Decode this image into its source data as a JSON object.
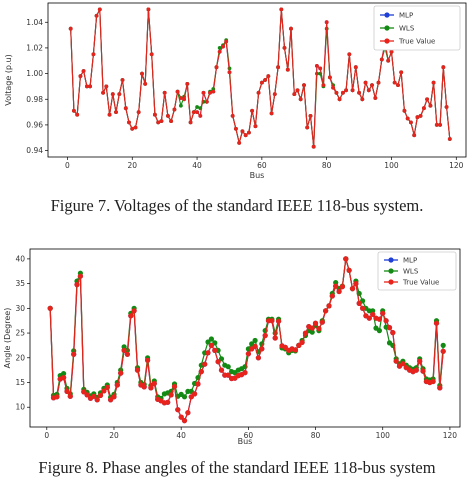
{
  "figures": [
    {
      "caption": "Figure 7. Voltages of the standard IEEE 118-bus system."
    },
    {
      "caption": "Figure 8. Phase angles of the standard IEEE 118-bus system"
    }
  ],
  "chart_data": [
    {
      "type": "line",
      "title": "",
      "xlabel": "Bus",
      "ylabel": "Voltage (p.u)",
      "xlim": [
        -6,
        123
      ],
      "ylim": [
        0.935,
        1.055
      ],
      "xticks": [
        0,
        20,
        40,
        60,
        80,
        100,
        120
      ],
      "yticks": [
        0.94,
        0.96,
        0.98,
        1.0,
        1.02,
        1.04
      ],
      "ytick_labels": [
        "0.94",
        "0.96",
        "0.98",
        "1.00",
        "1.02",
        "1.04"
      ],
      "legend": "top-right",
      "x": [
        1,
        2,
        3,
        4,
        5,
        6,
        7,
        8,
        9,
        10,
        11,
        12,
        13,
        14,
        15,
        16,
        17,
        18,
        19,
        20,
        21,
        22,
        23,
        24,
        25,
        26,
        27,
        28,
        29,
        30,
        31,
        32,
        33,
        34,
        35,
        36,
        37,
        38,
        39,
        40,
        41,
        42,
        43,
        44,
        45,
        46,
        47,
        48,
        49,
        50,
        51,
        52,
        53,
        54,
        55,
        56,
        57,
        58,
        59,
        60,
        61,
        62,
        63,
        64,
        65,
        66,
        67,
        68,
        69,
        70,
        71,
        72,
        73,
        74,
        75,
        76,
        77,
        78,
        79,
        80,
        81,
        82,
        83,
        84,
        85,
        86,
        87,
        88,
        89,
        90,
        91,
        92,
        93,
        94,
        95,
        96,
        97,
        98,
        99,
        100,
        101,
        102,
        103,
        104,
        105,
        106,
        107,
        108,
        109,
        110,
        111,
        112,
        113,
        114,
        115,
        116,
        117,
        118
      ],
      "series": [
        {
          "name": "MLP",
          "color": "#1f3fd6",
          "values": [
            1.035,
            0.971,
            0.968,
            0.998,
            1.002,
            0.99,
            0.99,
            1.015,
            1.045,
            1.05,
            0.985,
            0.99,
            0.968,
            0.984,
            0.97,
            0.984,
            0.995,
            0.973,
            0.962,
            0.957,
            0.958,
            0.97,
            1.0,
            0.992,
            1.05,
            1.015,
            0.968,
            0.962,
            0.963,
            0.985,
            0.967,
            0.963,
            0.972,
            0.986,
            0.981,
            0.98,
            0.992,
            0.962,
            0.97,
            0.97,
            0.967,
            0.985,
            0.978,
            0.985,
            0.986,
            1.005,
            1.017,
            1.021,
            1.025,
            1.001,
            0.967,
            0.957,
            0.946,
            0.955,
            0.952,
            0.954,
            0.971,
            0.959,
            0.985,
            0.993,
            0.995,
            0.998,
            0.969,
            0.984,
            1.005,
            1.05,
            1.02,
            1.003,
            1.035,
            0.984,
            0.987,
            0.98,
            0.991,
            0.958,
            0.967,
            0.943,
            1.006,
            1.004,
            0.991,
            1.04,
            0.997,
            0.989,
            0.985,
            0.98,
            0.985,
            0.987,
            1.015,
            0.987,
            1.005,
            0.985,
            0.98,
            0.993,
            0.987,
            0.991,
            0.981,
            0.993,
            1.011,
            1.024,
            1.01,
            1.017,
            0.993,
            0.991,
            1.001,
            0.971,
            0.965,
            0.962,
            0.952,
            0.966,
            0.967,
            0.973,
            0.98,
            0.975,
            0.993,
            0.96,
            0.96,
            1.005,
            0.974,
            0.949
          ]
        },
        {
          "name": "WLS",
          "color": "#138a13",
          "values": [
            1.035,
            0.971,
            0.968,
            0.998,
            1.002,
            0.99,
            0.99,
            1.015,
            1.045,
            1.05,
            0.985,
            0.99,
            0.968,
            0.984,
            0.97,
            0.984,
            0.995,
            0.973,
            0.962,
            0.957,
            0.958,
            0.97,
            1.0,
            0.992,
            1.05,
            1.015,
            0.968,
            0.962,
            0.963,
            0.985,
            0.967,
            0.963,
            0.972,
            0.986,
            0.975,
            0.982,
            0.992,
            0.962,
            0.97,
            0.974,
            0.973,
            0.978,
            0.978,
            0.986,
            0.988,
            1.005,
            1.02,
            1.022,
            1.026,
            1.004,
            0.967,
            0.957,
            0.946,
            0.955,
            0.952,
            0.954,
            0.971,
            0.959,
            0.985,
            0.993,
            0.995,
            0.998,
            0.969,
            0.984,
            1.005,
            1.05,
            1.02,
            1.003,
            1.035,
            0.984,
            0.987,
            0.98,
            0.991,
            0.958,
            0.967,
            0.943,
            1.0,
            1.0,
            0.99,
            1.035,
            0.997,
            0.991,
            0.985,
            0.98,
            0.985,
            0.987,
            1.015,
            0.987,
            1.005,
            0.985,
            0.98,
            0.993,
            0.987,
            0.991,
            0.981,
            0.993,
            1.011,
            1.02,
            1.01,
            1.017,
            0.993,
            0.991,
            1.001,
            0.971,
            0.965,
            0.962,
            0.952,
            0.966,
            0.967,
            0.973,
            0.98,
            0.975,
            0.993,
            0.96,
            0.96,
            1.005,
            0.974,
            0.949
          ]
        },
        {
          "name": "True Value",
          "color": "#e8231c",
          "values": [
            1.035,
            0.971,
            0.968,
            0.998,
            1.002,
            0.99,
            0.99,
            1.015,
            1.045,
            1.05,
            0.985,
            0.99,
            0.968,
            0.984,
            0.97,
            0.984,
            0.995,
            0.973,
            0.962,
            0.957,
            0.958,
            0.97,
            1.0,
            0.992,
            1.05,
            1.015,
            0.968,
            0.962,
            0.963,
            0.985,
            0.967,
            0.963,
            0.972,
            0.986,
            0.981,
            0.98,
            0.992,
            0.962,
            0.97,
            0.97,
            0.967,
            0.985,
            0.978,
            0.985,
            0.986,
            1.005,
            1.017,
            1.021,
            1.025,
            1.001,
            0.967,
            0.957,
            0.946,
            0.955,
            0.952,
            0.954,
            0.971,
            0.959,
            0.985,
            0.993,
            0.995,
            0.998,
            0.969,
            0.984,
            1.005,
            1.05,
            1.02,
            1.003,
            1.035,
            0.984,
            0.987,
            0.98,
            0.991,
            0.958,
            0.967,
            0.943,
            1.006,
            1.004,
            0.991,
            1.04,
            0.997,
            0.989,
            0.985,
            0.98,
            0.985,
            0.987,
            1.015,
            0.987,
            1.005,
            0.985,
            0.98,
            0.993,
            0.987,
            0.991,
            0.981,
            0.993,
            1.011,
            1.024,
            1.01,
            1.017,
            0.993,
            0.991,
            1.001,
            0.971,
            0.965,
            0.962,
            0.952,
            0.966,
            0.967,
            0.973,
            0.98,
            0.975,
            0.993,
            0.96,
            0.96,
            1.005,
            0.974,
            0.949
          ]
        }
      ]
    },
    {
      "type": "line",
      "title": "",
      "xlabel": "Bus",
      "ylabel": "Angle (Degree)",
      "xlim": [
        -5,
        123
      ],
      "ylim": [
        6,
        42
      ],
      "xticks": [
        0,
        20,
        40,
        60,
        80,
        100,
        120
      ],
      "yticks": [
        10,
        15,
        20,
        25,
        30,
        35,
        40
      ],
      "ytick_labels": [
        "10",
        "15",
        "20",
        "25",
        "30",
        "35",
        "40"
      ],
      "legend": "top-right",
      "x": [
        1,
        2,
        3,
        4,
        5,
        6,
        7,
        8,
        9,
        10,
        11,
        12,
        13,
        14,
        15,
        16,
        17,
        18,
        19,
        20,
        21,
        22,
        23,
        24,
        25,
        26,
        27,
        28,
        29,
        30,
        31,
        32,
        33,
        34,
        35,
        36,
        37,
        38,
        39,
        40,
        41,
        42,
        43,
        44,
        45,
        46,
        47,
        48,
        49,
        50,
        51,
        52,
        53,
        54,
        55,
        56,
        57,
        58,
        59,
        60,
        61,
        62,
        63,
        64,
        65,
        66,
        67,
        68,
        69,
        70,
        71,
        72,
        73,
        74,
        75,
        76,
        77,
        78,
        79,
        80,
        81,
        82,
        83,
        84,
        85,
        86,
        87,
        88,
        89,
        90,
        91,
        92,
        93,
        94,
        95,
        96,
        97,
        98,
        99,
        100,
        101,
        102,
        103,
        104,
        105,
        106,
        107,
        108,
        109,
        110,
        111,
        112,
        113,
        114,
        115,
        116,
        117,
        118
      ],
      "series": [
        {
          "name": "MLP",
          "color": "#1f3fd6",
          "values": [
            30,
            11.9,
            12.1,
            15.7,
            16,
            13.2,
            12.2,
            20.7,
            34.8,
            36.5,
            13.1,
            12.5,
            11.8,
            12.2,
            11.5,
            12.4,
            13.3,
            14,
            11.5,
            12.1,
            14.5,
            16.9,
            21.5,
            20.7,
            28.5,
            29.5,
            17.5,
            14.5,
            14.1,
            19.5,
            13.9,
            14.8,
            11.6,
            11.3,
            10.9,
            11,
            12.5,
            14.2,
            9.5,
            8,
            7.3,
            8.9,
            12.1,
            12.7,
            14.7,
            17.2,
            18.7,
            21,
            22.5,
            21.5,
            19.2,
            17.5,
            16.5,
            16.5,
            15.8,
            15.9,
            16.4,
            16.6,
            17,
            20.8,
            21.8,
            22.3,
            20,
            21.8,
            24.5,
            27.5,
            27.5,
            24,
            27.4,
            22.4,
            22.1,
            21.5,
            21.8,
            21.6,
            22.5,
            23.1,
            25,
            26.3,
            26,
            27,
            25.9,
            27.2,
            29.5,
            30.5,
            32.5,
            34.5,
            33.4,
            34.4,
            40,
            37.7,
            34,
            35,
            31,
            30,
            28.5,
            28,
            28.8,
            28,
            27.8,
            29,
            27.5,
            26.1,
            25.1,
            19.3,
            18.3,
            18.8,
            18,
            17.5,
            17.2,
            17.5,
            19.3,
            17.3,
            15.2,
            15,
            15.2,
            27,
            13.9,
            21.3
          ]
        },
        {
          "name": "WLS",
          "color": "#138a13",
          "values": [
            30,
            12.4,
            12.6,
            16.4,
            16.8,
            13.8,
            12.7,
            21.4,
            35.5,
            37.1,
            13.6,
            13,
            12.3,
            12.7,
            12,
            12.9,
            13.8,
            14.5,
            12,
            12.6,
            15,
            17.5,
            22.2,
            21.5,
            29,
            30,
            18,
            15,
            14.6,
            20,
            14.4,
            15.3,
            12.1,
            11.8,
            12.7,
            12.9,
            13.2,
            14.7,
            12.2,
            12.6,
            12.1,
            13.2,
            13.2,
            14.8,
            16,
            18.5,
            21,
            23.2,
            23.8,
            23,
            21.5,
            19.8,
            18.5,
            18.2,
            17.2,
            17,
            17.5,
            17.8,
            18.2,
            21.8,
            22.8,
            23.5,
            21.2,
            22.8,
            25.5,
            27.8,
            27.8,
            25,
            27.8,
            22,
            21.8,
            21,
            21.5,
            21.4,
            22.5,
            23.5,
            24.5,
            25.5,
            25.2,
            26.5,
            25.5,
            27.5,
            29.5,
            30.5,
            33,
            35.2,
            34,
            34.5,
            40,
            37.7,
            34,
            35.5,
            33,
            31.5,
            30,
            29.5,
            29.5,
            26,
            25.5,
            29.5,
            26.2,
            23,
            22.5,
            19.8,
            18.8,
            19.3,
            18.5,
            18,
            17.7,
            18,
            19.8,
            17.8,
            15.7,
            15.5,
            15.7,
            27.5,
            14.4,
            22.5
          ]
        },
        {
          "name": "True Value",
          "color": "#e8231c",
          "values": [
            30,
            11.9,
            12.1,
            15.7,
            16,
            13.2,
            12.2,
            20.7,
            34.8,
            36.5,
            13.1,
            12.5,
            11.8,
            12.2,
            11.5,
            12.4,
            13.3,
            14,
            11.5,
            12.1,
            14.5,
            16.9,
            21.5,
            20.7,
            28.5,
            29.5,
            17.5,
            14.5,
            14.1,
            19.5,
            13.9,
            14.8,
            11.6,
            11.3,
            10.9,
            11,
            12.5,
            14.2,
            9.5,
            8,
            7.3,
            8.9,
            12.1,
            12.7,
            14.7,
            17.2,
            18.7,
            21,
            22.5,
            21.5,
            19.2,
            17.5,
            16.5,
            16.5,
            15.8,
            15.9,
            16.4,
            16.6,
            17,
            20.8,
            21.8,
            22.3,
            20,
            21.8,
            24.5,
            27.5,
            27.5,
            24,
            27.4,
            22.4,
            22.1,
            21.5,
            21.8,
            21.6,
            22.5,
            23.1,
            25,
            26.3,
            26,
            27,
            25.9,
            27.2,
            29.5,
            30.5,
            32.5,
            34.5,
            33.4,
            34.4,
            40,
            37.7,
            34,
            35,
            31,
            30,
            28.5,
            28,
            28.8,
            28,
            27.8,
            29,
            27.5,
            26.1,
            25.1,
            19.3,
            18.3,
            18.8,
            18,
            17.5,
            17.2,
            17.5,
            19.3,
            17.3,
            15.2,
            15,
            15.2,
            27,
            13.9,
            21.3
          ]
        }
      ]
    }
  ]
}
